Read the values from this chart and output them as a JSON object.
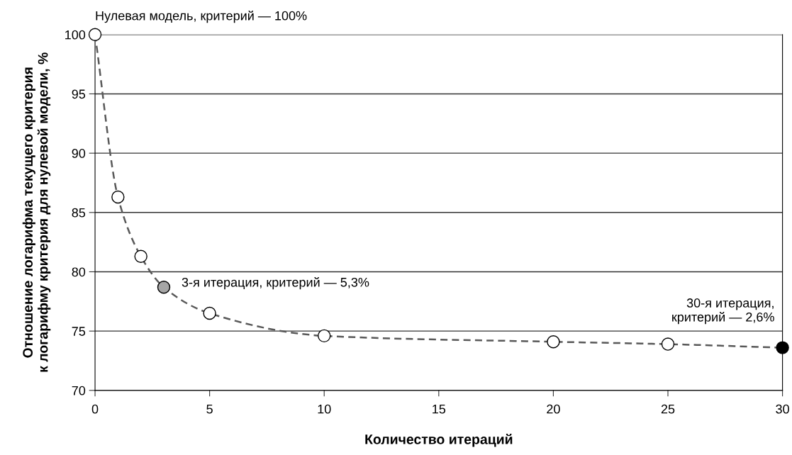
{
  "chart_data": {
    "type": "line",
    "xlabel": "Количество итераций",
    "ylabel": "Отношение логарифма текущего критерия\nк логарифму критерия для нулевой модели, %",
    "x": [
      0,
      1,
      2,
      3,
      5,
      10,
      20,
      25,
      30
    ],
    "series": [
      {
        "color": "#595959",
        "values": [
          100,
          86.3,
          81.3,
          78.7,
          76.5,
          74.6,
          74.1,
          73.9,
          73.6
        ],
        "colors": [
          "#ffffff",
          "#ffffff",
          "#ffffff",
          "#a6a6a6",
          "#ffffff",
          "#ffffff",
          "#ffffff",
          "#ffffff",
          "#000000"
        ]
      }
    ],
    "xlim": [
      0,
      30
    ],
    "xticks": [
      0,
      5,
      10,
      15,
      20,
      25,
      30
    ],
    "ylim": [
      70,
      100
    ],
    "yticks": [
      70,
      75,
      80,
      85,
      90,
      95,
      100
    ],
    "grid": "y",
    "marker": "circle",
    "line_style": "dashed",
    "annotations": [
      {
        "text": "Нулевая модель, критерий — 100%",
        "x": 0,
        "y": 100
      },
      {
        "text": "3-я итерация, критерий — 5,3%",
        "x": 3,
        "y": 78.7
      },
      {
        "text": "30-я итерация,\nкритерий — 2,6%",
        "x": 30,
        "y": 73.6
      }
    ]
  }
}
